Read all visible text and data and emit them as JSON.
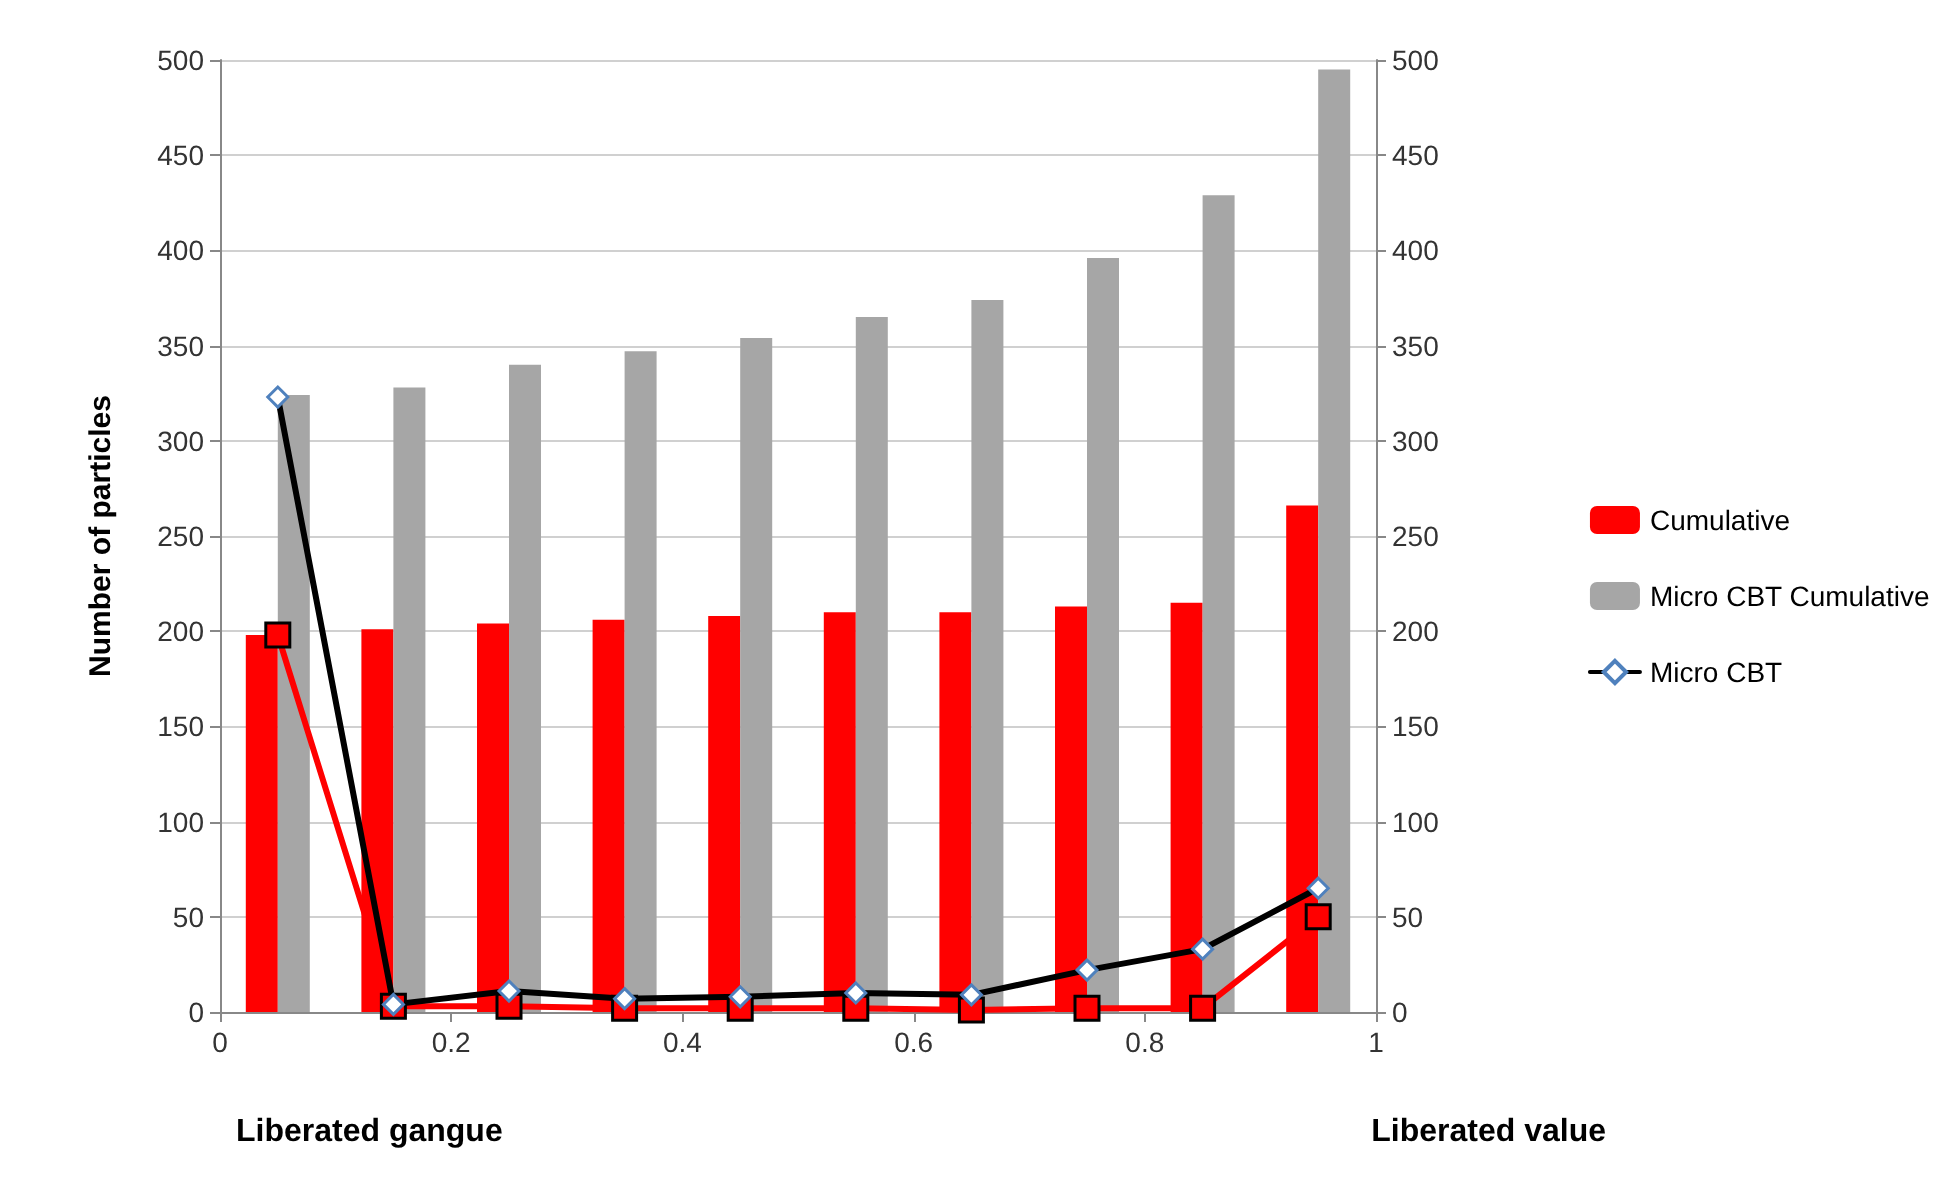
{
  "chart_data": {
    "type": "bar",
    "ylabel": "Number of particles",
    "x": [
      0.05,
      0.15,
      0.25,
      0.35,
      0.45,
      0.55,
      0.65,
      0.75,
      0.85,
      0.95
    ],
    "xlim": [
      0,
      1
    ],
    "xticks": [
      0,
      0.2,
      0.4,
      0.6,
      0.8,
      1
    ],
    "ylim": [
      0,
      500
    ],
    "yticks": [
      0,
      50,
      100,
      150,
      200,
      250,
      300,
      350,
      400,
      450,
      500
    ],
    "y2lim": [
      0,
      500
    ],
    "y2ticks": [
      0,
      50,
      100,
      150,
      200,
      250,
      300,
      350,
      400,
      450,
      500
    ],
    "grid": "y",
    "legend": "right",
    "series": [
      {
        "name": "Cumulative",
        "color": "#ff0000",
        "values": [
          198,
          201,
          204,
          206,
          208,
          210,
          210,
          213,
          215,
          266
        ]
      },
      {
        "name": "Micro CBT Cumulative",
        "color": "#a6a6a6",
        "values": [
          324,
          328,
          340,
          347,
          354,
          365,
          374,
          396,
          429,
          495
        ]
      },
      {
        "type": "line",
        "color": "#ff0000",
        "marker": "square",
        "values": [
          198,
          3,
          3,
          2,
          2,
          2,
          1,
          2,
          2,
          50
        ]
      },
      {
        "name": "Micro CBT",
        "type": "line",
        "color": "#000000",
        "marker": "diamond",
        "values": [
          323,
          4,
          11,
          7,
          8,
          10,
          9,
          22,
          33,
          65
        ]
      }
    ],
    "annotations": [
      "Liberated gangue",
      "Liberated value"
    ]
  }
}
